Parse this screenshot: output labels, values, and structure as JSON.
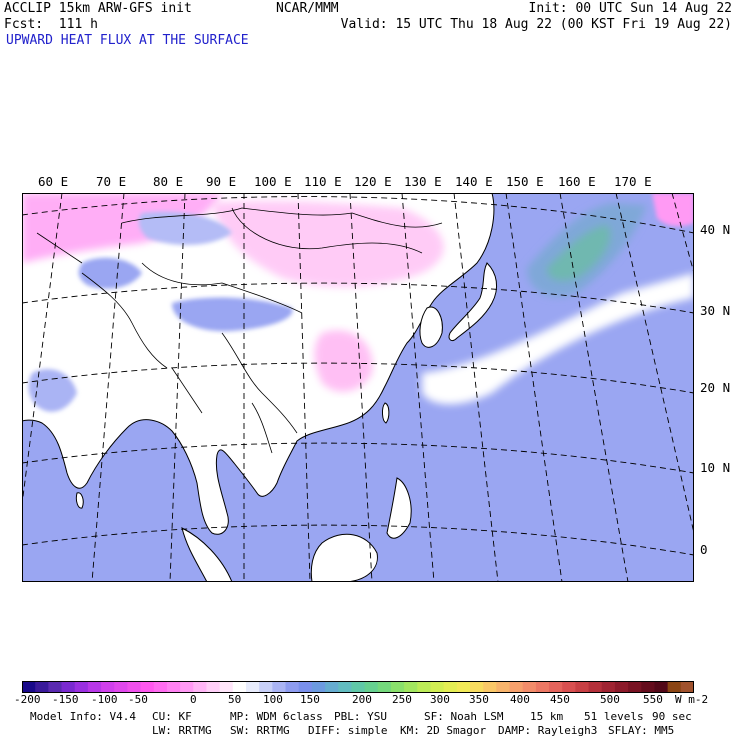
{
  "header": {
    "model_line": "ACCLIP 15km ARW-GFS init",
    "forecast_line": "Fcst:  111 h",
    "center": "NCAR/MMM",
    "init_line": "Init: 00 UTC Sun 14 Aug 22",
    "valid_line": "Valid: 15 UTC Thu 18 Aug 22 (00 KST Fri 19 Aug 22)"
  },
  "field_title": "UPWARD HEAT FLUX AT THE SURFACE",
  "map": {
    "longitude_labels": [
      "60 E",
      "70 E",
      "80 E",
      "90 E",
      "100 E",
      "110 E",
      "120 E",
      "130 E",
      "140 E",
      "150 E",
      "160 E",
      "170 E"
    ],
    "latitude_labels": [
      "40 N",
      "30 N",
      "20 N",
      "10 N",
      "0"
    ],
    "colors": {
      "land_low": "#ffffff",
      "land_negative": "#ff88ee",
      "ocean_low": "#9aa6f2",
      "ocean_moderate": "#7fa8d8",
      "ocean_high": "#6fb8b0",
      "coastline": "#000000",
      "gridline": "#000000"
    }
  },
  "colorbar": {
    "labels": [
      "-200",
      "-150",
      "-100",
      "-50",
      "0",
      "50",
      "100",
      "150",
      "200",
      "250",
      "300",
      "350",
      "400",
      "450",
      "500",
      "550"
    ],
    "units": "W m-2",
    "colors": [
      "#1a0a8a",
      "#3a1a9a",
      "#5a2ab0",
      "#7a2ad0",
      "#9a30e0",
      "#b838e8",
      "#d040ec",
      "#e048ec",
      "#f050ec",
      "#ff58ee",
      "#ff6cf0",
      "#ff82f2",
      "#ff9af4",
      "#ffb6f6",
      "#ffd0f8",
      "#ffe6fa",
      "#ffffff",
      "#e8ecfc",
      "#c8d0f8",
      "#aab4f4",
      "#8e9cf0",
      "#7a90ec",
      "#6c9ae0",
      "#66acd0",
      "#62bcc0",
      "#60c8a8",
      "#66d090",
      "#74d87c",
      "#8ae06c",
      "#a2e660",
      "#bceb58",
      "#d2ee54",
      "#e4ee54",
      "#f2ea58",
      "#f8dc60",
      "#fac868",
      "#f8b46c",
      "#f6a06c",
      "#f28c6a",
      "#ec7864",
      "#e4645c",
      "#d85050",
      "#c84044",
      "#b4303a",
      "#a02432",
      "#8c1a2a",
      "#781222",
      "#640c1c",
      "#520818",
      "#8b4513",
      "#a0522d"
    ]
  },
  "model_info": {
    "row1": [
      "Model Info: V4.4",
      "CU: KF",
      "MP: WDM 6class",
      "PBL: YSU",
      "SF: Noah LSM",
      "15 km",
      "51 levels",
      "90 sec"
    ],
    "row2": [
      "LW: RRTMG",
      "SW: RRTMG",
      "DIFF: simple",
      "KM: 2D Smagor",
      "DAMP: Rayleigh3",
      "SFLAY: MM5"
    ]
  }
}
